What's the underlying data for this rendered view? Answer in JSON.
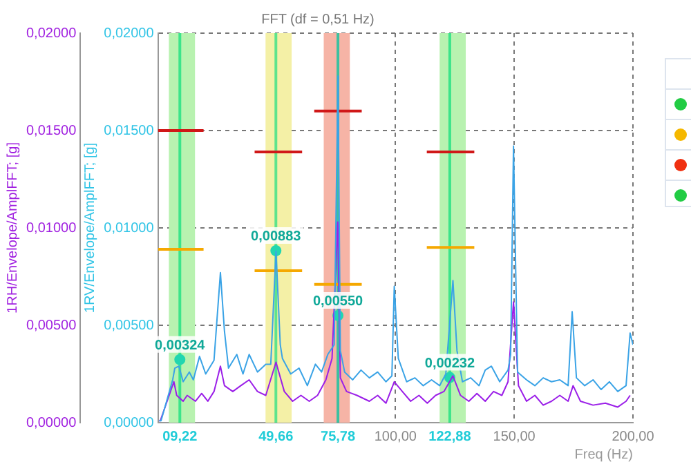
{
  "chart_data": {
    "type": "line",
    "title": "FFT (df = 0,51 Hz)",
    "xlabel": "Freq (Hz)",
    "ylabel": "1RH/Envelope/AmplFFT; [g]",
    "y2label": "1RV/Envelope/AmplFFT; [g]",
    "xlim": [
      0,
      200
    ],
    "xticks": [
      {
        "value": 100,
        "label": "100,00"
      },
      {
        "value": 150,
        "label": "150,00"
      },
      {
        "value": 200,
        "label": "200,00"
      }
    ],
    "ylim": [
      0,
      0.02
    ],
    "yticks": [
      {
        "value": 0,
        "label": "0,00000"
      },
      {
        "value": 0.005,
        "label": "0,00500"
      },
      {
        "value": 0.01,
        "label": "0,01000"
      },
      {
        "value": 0.015,
        "label": "0,01500"
      },
      {
        "value": 0.02,
        "label": "0,02000"
      }
    ],
    "y2lim": [
      0,
      0.02
    ],
    "y2ticks": [
      {
        "value": 0,
        "label": "0,00000"
      },
      {
        "value": 0.005,
        "label": "0,00500"
      },
      {
        "value": 0.01,
        "label": "0,01000"
      },
      {
        "value": 0.015,
        "label": "0,01500"
      },
      {
        "value": 0.02,
        "label": "0,02000"
      }
    ],
    "grid": true,
    "legend": false,
    "bands": [
      {
        "axis": "x",
        "from": 4.6,
        "to": 15.6,
        "color": "#b8f2b0"
      },
      {
        "axis": "x",
        "from": 45.3,
        "to": 56.3,
        "color": "#f4f0a6"
      },
      {
        "axis": "x",
        "from": 69.8,
        "to": 80.8,
        "color": "#f6b4a6"
      },
      {
        "axis": "x",
        "from": 118.6,
        "to": 129.6,
        "color": "#b8f2b0"
      }
    ],
    "ref_lines": [
      {
        "axis": "x",
        "value": 9.22,
        "label": "09,22",
        "color": "#3ce48a"
      },
      {
        "axis": "x",
        "value": 49.66,
        "label": "49,66",
        "color": "#5ee48c"
      },
      {
        "axis": "x",
        "value": 75.78,
        "label": "75,78",
        "color": "#3cc0a0"
      },
      {
        "axis": "x",
        "value": 122.88,
        "label": "122,88",
        "color": "#3ce48a"
      }
    ],
    "series": [
      {
        "type": "line",
        "color": "#3aa3e6",
        "marker": "none",
        "x": [
          0.5,
          1.3,
          6.2,
          7.1,
          8.8,
          10.6,
          13.2,
          14.9,
          17.5,
          20.1,
          23.6,
          26.3,
          28.0,
          29.7,
          33.2,
          35.8,
          38.4,
          41.9,
          45.4,
          47.5,
          49.7,
          51.5,
          52.4,
          55.9,
          59.4,
          62.9,
          66.3,
          68.9,
          71.5,
          74.2,
          75.8,
          76.8,
          78.6,
          82.0,
          85.5,
          89.0,
          92.5,
          96.0,
          98.5,
          99.5,
          101.2,
          104.7,
          108.2,
          111.7,
          115.2,
          118.6,
          121.2,
          124.2,
          125.9,
          128.2,
          131.7,
          135.2,
          137.8,
          140.4,
          143.9,
          147.4,
          148.5,
          149.7,
          151.4,
          155.2,
          158.7,
          162.2,
          165.7,
          169.2,
          172.7,
          174.4,
          176.2,
          179.7,
          183.2,
          186.6,
          190.1,
          193.6,
          197.1,
          198.8,
          200
        ],
        "values": [
          0.0001,
          0.0001,
          0.0022,
          0.0028,
          0.0029,
          0.0021,
          0.0026,
          0.0022,
          0.0034,
          0.0025,
          0.0032,
          0.0077,
          0.0047,
          0.0028,
          0.0035,
          0.0025,
          0.0035,
          0.0026,
          0.003,
          0.003,
          0.0088,
          0.004,
          0.0033,
          0.0025,
          0.0028,
          0.0019,
          0.003,
          0.0026,
          0.0035,
          0.004,
          0.0178,
          0.0037,
          0.0026,
          0.0022,
          0.0027,
          0.0023,
          0.0026,
          0.0021,
          0.0024,
          0.007,
          0.0033,
          0.0021,
          0.0023,
          0.0019,
          0.0022,
          0.0019,
          0.0025,
          0.0073,
          0.0037,
          0.0021,
          0.0023,
          0.0019,
          0.0027,
          0.0029,
          0.0021,
          0.0027,
          0.0035,
          0.0142,
          0.0026,
          0.0022,
          0.0019,
          0.0023,
          0.0021,
          0.0022,
          0.0019,
          0.0057,
          0.0023,
          0.0019,
          0.0022,
          0.0017,
          0.0021,
          0.0016,
          0.0019,
          0.0046,
          0.004
        ]
      },
      {
        "type": "line",
        "color": "#9b1fe8",
        "marker": "none",
        "x": [
          0.5,
          1.0,
          6.7,
          7.9,
          10.6,
          12.3,
          15.8,
          18.4,
          21.0,
          23.6,
          26.3,
          28.0,
          31.5,
          34.9,
          38.4,
          41.9,
          45.4,
          49.7,
          53.2,
          56.7,
          60.2,
          63.7,
          67.2,
          70.7,
          73.3,
          75.7,
          76.8,
          79.4,
          83.8,
          89.0,
          92.5,
          96.0,
          99.5,
          102.9,
          106.4,
          109.9,
          113.4,
          116.9,
          120.4,
          124.2,
          127.4,
          130.9,
          134.3,
          137.8,
          141.3,
          144.8,
          147.4,
          149.7,
          151.8,
          155.2,
          158.7,
          162.2,
          165.7,
          169.2,
          172.7,
          174.8,
          177.9,
          183.2,
          188.4,
          193.6,
          197.1,
          198.8
        ],
        "values": [
          0.0001,
          0.0001,
          0.0021,
          0.0014,
          0.0011,
          0.0014,
          0.0011,
          0.0015,
          0.0011,
          0.0016,
          0.0029,
          0.0019,
          0.0016,
          0.0019,
          0.0022,
          0.0016,
          0.0014,
          0.0031,
          0.0016,
          0.0011,
          0.0014,
          0.0011,
          0.0014,
          0.0022,
          0.0033,
          0.0103,
          0.0023,
          0.0016,
          0.0014,
          0.0011,
          0.0014,
          0.001,
          0.0021,
          0.0016,
          0.0011,
          0.0014,
          0.001,
          0.0014,
          0.0016,
          0.0024,
          0.0014,
          0.0011,
          0.0015,
          0.0011,
          0.0016,
          0.0014,
          0.0021,
          0.0062,
          0.0019,
          0.0011,
          0.0014,
          0.0009,
          0.0011,
          0.0014,
          0.0011,
          0.0019,
          0.0011,
          0.0009,
          0.001,
          0.0008,
          0.0011,
          0.0014
        ]
      },
      {
        "type": "line",
        "color": "#d01818",
        "marker": "none",
        "x": [
          0,
          19.2
        ],
        "values": [
          0.015,
          0.015
        ]
      },
      {
        "type": "line",
        "color": "#f5a800",
        "marker": "none",
        "x": [
          0,
          19.2
        ],
        "values": [
          0.0089,
          0.0089
        ]
      },
      {
        "type": "line",
        "color": "#d01818",
        "marker": "none",
        "x": [
          40.7,
          60.7
        ],
        "values": [
          0.0139,
          0.0139
        ]
      },
      {
        "type": "line",
        "color": "#f5a800",
        "marker": "none",
        "x": [
          40.7,
          60.7
        ],
        "values": [
          0.0078,
          0.0078
        ]
      },
      {
        "type": "line",
        "color": "#d01818",
        "marker": "none",
        "x": [
          65.8,
          85.8
        ],
        "values": [
          0.016,
          0.016
        ]
      },
      {
        "type": "line",
        "color": "#f5a800",
        "marker": "none",
        "x": [
          65.8,
          85.8
        ],
        "values": [
          0.0071,
          0.0071
        ]
      },
      {
        "type": "line",
        "color": "#d01818",
        "marker": "none",
        "x": [
          113.2,
          133.2
        ],
        "values": [
          0.0139,
          0.0139
        ]
      },
      {
        "type": "line",
        "color": "#f5a800",
        "marker": "none",
        "x": [
          113.2,
          133.2
        ],
        "values": [
          0.009,
          0.009
        ]
      },
      {
        "type": "scatter",
        "color": "#22d6b0",
        "marker": "circle",
        "x": [
          9.22,
          49.66,
          75.78,
          122.88
        ],
        "values": [
          0.00324,
          0.00883,
          0.0055,
          0.00232
        ],
        "value_labels": [
          "0,00324",
          "0,00883",
          "0,00550",
          "0,00232"
        ]
      }
    ]
  }
}
